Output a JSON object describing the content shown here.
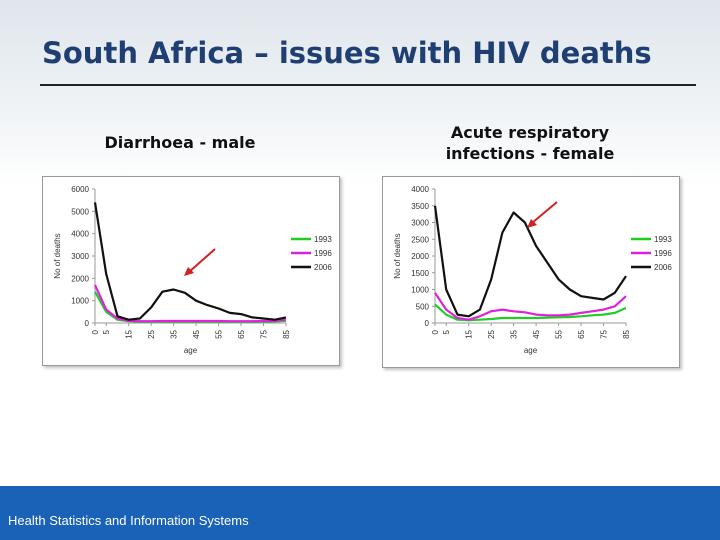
{
  "slide": {
    "title": "South Africa – issues with HIV deaths",
    "footer": "Health Statistics and Information Systems"
  },
  "colors": {
    "title": "#1f3f73",
    "footer_band": "#1a62b8",
    "arrow": "#d42020",
    "series_1993": "#22cc22",
    "series_1996": "#dd22dd",
    "series_2006": "#111111"
  },
  "charts": {
    "left": {
      "heading": "Diarrhoea - male"
    },
    "right": {
      "heading_line1": "Acute respiratory",
      "heading_line2": "infections - female"
    }
  },
  "chart_data": [
    {
      "type": "line",
      "title": "Diarrhoea - male",
      "xlabel": "age",
      "ylabel": "No of deaths",
      "x": [
        0,
        5,
        10,
        15,
        20,
        25,
        30,
        35,
        40,
        45,
        50,
        55,
        60,
        65,
        70,
        75,
        80,
        85
      ],
      "xticks": [
        "0",
        "5",
        "15",
        "25",
        "35",
        "45",
        "55",
        "65",
        "75",
        "85"
      ],
      "yticks": [
        "0",
        "1000",
        "2000",
        "3000",
        "4000",
        "5000",
        "6000"
      ],
      "ylim": [
        0,
        6000
      ],
      "legend_position": "right",
      "series": [
        {
          "name": "1993",
          "color": "#22cc22",
          "values": [
            1400,
            500,
            150,
            80,
            60,
            60,
            60,
            60,
            60,
            60,
            60,
            60,
            60,
            60,
            60,
            60,
            70,
            100
          ]
        },
        {
          "name": "1996",
          "color": "#dd22dd",
          "values": [
            1700,
            600,
            200,
            100,
            80,
            80,
            90,
            90,
            90,
            90,
            90,
            90,
            80,
            80,
            80,
            90,
            100,
            150
          ]
        },
        {
          "name": "2006",
          "color": "#111111",
          "values": [
            5400,
            2200,
            300,
            150,
            200,
            700,
            1400,
            1500,
            1350,
            1000,
            800,
            650,
            450,
            400,
            250,
            200,
            150,
            250
          ]
        }
      ]
    },
    {
      "type": "line",
      "title": "Acute respiratory infections - female",
      "xlabel": "age",
      "ylabel": "No of deaths",
      "x": [
        0,
        5,
        10,
        15,
        20,
        25,
        30,
        35,
        40,
        45,
        50,
        55,
        60,
        65,
        70,
        75,
        80,
        85
      ],
      "xticks": [
        "0",
        "5",
        "15",
        "25",
        "35",
        "45",
        "55",
        "65",
        "75",
        "85"
      ],
      "yticks": [
        "0",
        "500",
        "1000",
        "1500",
        "2000",
        "2500",
        "3000",
        "3500",
        "4000"
      ],
      "ylim": [
        0,
        4000
      ],
      "legend_position": "right",
      "series": [
        {
          "name": "1993",
          "color": "#22cc22",
          "values": [
            550,
            250,
            100,
            80,
            100,
            120,
            150,
            150,
            150,
            150,
            160,
            170,
            180,
            200,
            230,
            250,
            300,
            450
          ]
        },
        {
          "name": "1996",
          "color": "#dd22dd",
          "values": [
            900,
            400,
            150,
            100,
            200,
            350,
            400,
            350,
            320,
            250,
            230,
            230,
            250,
            300,
            350,
            400,
            500,
            800
          ]
        },
        {
          "name": "2006",
          "color": "#111111",
          "values": [
            3500,
            1000,
            250,
            200,
            400,
            1300,
            2700,
            3300,
            3000,
            2300,
            1800,
            1300,
            1000,
            800,
            750,
            700,
            900,
            1400
          ]
        }
      ]
    }
  ]
}
